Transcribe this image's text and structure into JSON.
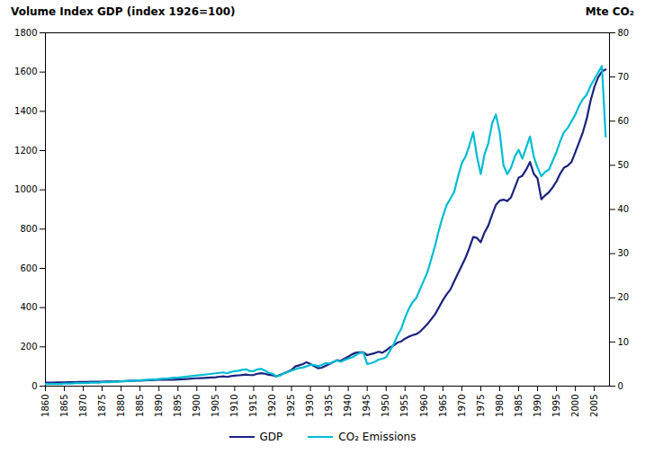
{
  "chart_data": {
    "type": "line",
    "ylabel": "Volume Index GDP (index 1926=100)",
    "y2label": "Mte CO₂",
    "x": [
      1860,
      1861,
      1862,
      1863,
      1864,
      1865,
      1866,
      1867,
      1868,
      1869,
      1870,
      1871,
      1872,
      1873,
      1874,
      1875,
      1876,
      1877,
      1878,
      1879,
      1880,
      1881,
      1882,
      1883,
      1884,
      1885,
      1886,
      1887,
      1888,
      1889,
      1890,
      1891,
      1892,
      1893,
      1894,
      1895,
      1896,
      1897,
      1898,
      1899,
      1900,
      1901,
      1902,
      1903,
      1904,
      1905,
      1906,
      1907,
      1908,
      1909,
      1910,
      1911,
      1912,
      1913,
      1914,
      1915,
      1916,
      1917,
      1918,
      1919,
      1920,
      1921,
      1922,
      1923,
      1924,
      1925,
      1926,
      1927,
      1928,
      1929,
      1930,
      1931,
      1932,
      1933,
      1934,
      1935,
      1936,
      1937,
      1938,
      1939,
      1940,
      1941,
      1942,
      1943,
      1944,
      1945,
      1946,
      1947,
      1948,
      1949,
      1950,
      1951,
      1952,
      1953,
      1954,
      1955,
      1956,
      1957,
      1958,
      1959,
      1960,
      1961,
      1962,
      1963,
      1964,
      1965,
      1966,
      1967,
      1968,
      1969,
      1970,
      1971,
      1972,
      1973,
      1974,
      1975,
      1976,
      1977,
      1978,
      1979,
      1980,
      1981,
      1982,
      1983,
      1984,
      1985,
      1986,
      1987,
      1988,
      1989,
      1990,
      1991,
      1992,
      1993,
      1994,
      1995,
      1996,
      1997,
      1998,
      1999,
      2000,
      2001,
      2002,
      2003,
      2004,
      2005,
      2006,
      2007,
      2008
    ],
    "series": [
      {
        "name": "GDP",
        "color": "#1a237e",
        "axis": "y",
        "values": [
          18,
          18,
          18,
          19,
          19,
          19,
          20,
          20,
          20,
          21,
          21,
          21,
          22,
          22,
          23,
          23,
          24,
          24,
          24,
          25,
          25,
          26,
          27,
          27,
          28,
          28,
          29,
          30,
          30,
          31,
          32,
          32,
          33,
          32,
          33,
          34,
          35,
          36,
          37,
          39,
          40,
          41,
          42,
          43,
          44,
          45,
          48,
          50,
          47,
          51,
          53,
          55,
          57,
          59,
          56,
          57,
          63,
          66,
          63,
          58,
          55,
          50,
          57,
          65,
          73,
          82,
          100,
          106,
          112,
          122,
          112,
          102,
          91,
          94,
          103,
          112,
          122,
          132,
          128,
          140,
          150,
          162,
          170,
          172,
          172,
          158,
          163,
          168,
          175,
          170,
          182,
          197,
          207,
          222,
          228,
          242,
          252,
          260,
          265,
          278,
          298,
          318,
          343,
          368,
          403,
          438,
          468,
          493,
          535,
          575,
          615,
          655,
          705,
          760,
          755,
          733,
          783,
          818,
          873,
          923,
          945,
          950,
          943,
          962,
          1012,
          1062,
          1072,
          1103,
          1142,
          1082,
          1058,
          952,
          972,
          988,
          1013,
          1043,
          1083,
          1113,
          1123,
          1143,
          1193,
          1243,
          1295,
          1363,
          1453,
          1523,
          1573,
          1603,
          1613
        ]
      },
      {
        "name": "CO₂ Emissions",
        "color": "#00bcd4",
        "axis": "y2",
        "values": [
          0.5,
          0.5,
          0.5,
          0.5,
          0.5,
          0.6,
          0.6,
          0.6,
          0.7,
          0.7,
          0.7,
          0.7,
          0.8,
          0.8,
          0.8,
          0.9,
          0.9,
          0.9,
          1.0,
          1.0,
          1.1,
          1.1,
          1.2,
          1.2,
          1.3,
          1.3,
          1.4,
          1.4,
          1.5,
          1.5,
          1.6,
          1.7,
          1.7,
          1.8,
          1.9,
          1.9,
          2.0,
          2.1,
          2.2,
          2.3,
          2.4,
          2.5,
          2.6,
          2.7,
          2.8,
          2.9,
          3.0,
          3.1,
          2.9,
          3.2,
          3.4,
          3.5,
          3.7,
          3.8,
          3.4,
          3.4,
          3.8,
          3.9,
          3.5,
          3.0,
          2.8,
          2.2,
          2.4,
          2.9,
          3.2,
          3.5,
          3.8,
          4.1,
          4.2,
          4.5,
          4.8,
          4.8,
          4.5,
          4.8,
          5.2,
          5.1,
          5.5,
          5.8,
          5.5,
          5.9,
          6.2,
          6.5,
          7.0,
          7.5,
          7.6,
          5.0,
          5.2,
          5.5,
          6.0,
          6.2,
          6.5,
          8.0,
          9.5,
          11.5,
          13.0,
          15.5,
          17.5,
          19.0,
          20.0,
          22.0,
          24.0,
          26.0,
          29.0,
          32.0,
          35.5,
          38.5,
          41.0,
          42.5,
          44.0,
          47.5,
          50.5,
          52.0,
          54.5,
          57.5,
          52.0,
          48.0,
          52.5,
          55.0,
          59.5,
          61.5,
          57.5,
          50.0,
          48.0,
          49.5,
          52.0,
          53.5,
          51.5,
          54.0,
          56.5,
          52.0,
          49.5,
          47.5,
          48.5,
          49.0,
          51.0,
          53.0,
          55.5,
          57.5,
          58.5,
          60.0,
          61.5,
          63.5,
          65.0,
          66.0,
          68.0,
          69.5,
          71.0,
          72.5,
          56.5
        ]
      }
    ],
    "xlim": [
      1860,
      2009
    ],
    "xticks": [
      1860,
      1865,
      1870,
      1875,
      1880,
      1885,
      1890,
      1895,
      1900,
      1905,
      1910,
      1915,
      1920,
      1925,
      1930,
      1935,
      1940,
      1945,
      1950,
      1955,
      1960,
      1965,
      1970,
      1975,
      1980,
      1985,
      1990,
      1995,
      2000,
      2005
    ],
    "ylim": [
      0,
      1800
    ],
    "yticks": [
      0,
      200,
      400,
      600,
      800,
      1000,
      1200,
      1400,
      1600,
      1800
    ],
    "y2lim": [
      0,
      80
    ],
    "y2ticks": [
      0,
      10,
      20,
      30,
      40,
      50,
      60,
      70,
      80
    ],
    "grid": false,
    "legend": "bottom"
  }
}
